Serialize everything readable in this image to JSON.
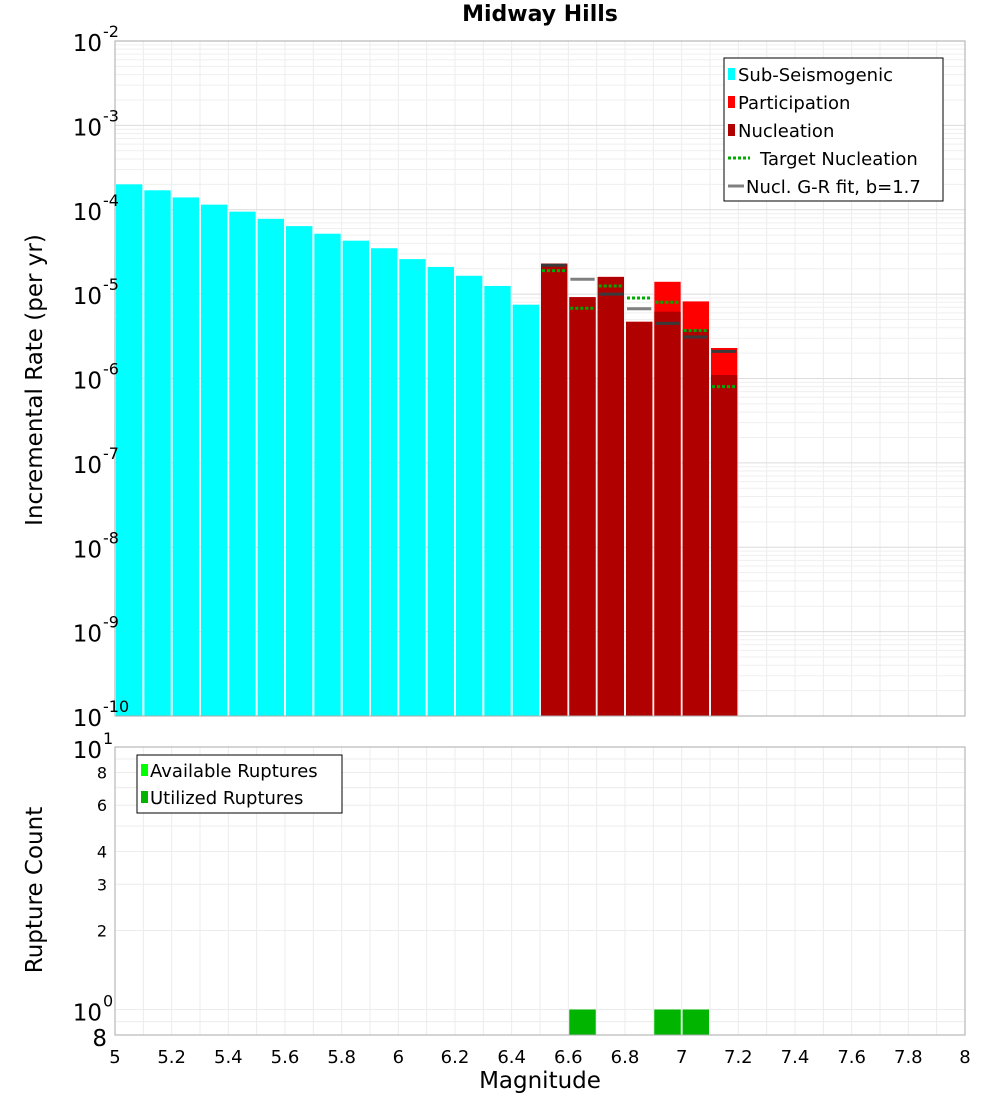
{
  "chart_data": [
    {
      "type": "bar",
      "title": "Midway Hills",
      "xlabel": "Magnitude",
      "ylabel": "Incremental Rate (per yr)",
      "yscale": "log",
      "xlim": [
        5,
        8
      ],
      "ylim": [
        1e-10,
        0.01
      ],
      "ytick_exponents": [
        -2,
        -3,
        -4,
        -5,
        -6,
        -7,
        -8,
        -9,
        -10
      ],
      "bin_width": 0.1,
      "series": [
        {
          "name": "Sub-Seismogenic",
          "color": "#00ffff",
          "x": [
            5.05,
            5.15,
            5.25,
            5.35,
            5.45,
            5.55,
            5.65,
            5.75,
            5.85,
            5.95,
            6.05,
            6.15,
            6.25,
            6.35,
            6.45
          ],
          "values": [
            0.0002,
            0.00017,
            0.00014,
            0.000115,
            9.5e-05,
            7.8e-05,
            6.4e-05,
            5.2e-05,
            4.3e-05,
            3.5e-05,
            2.6e-05,
            2.1e-05,
            1.65e-05,
            1.25e-05,
            7.5e-06
          ]
        },
        {
          "name": "Participation",
          "color": "#ff0000",
          "x": [
            6.55,
            6.65,
            6.75,
            6.85,
            6.95,
            7.05,
            7.15
          ],
          "values": [
            2.3e-05,
            9.2e-06,
            1.6e-05,
            4.7e-06,
            1.4e-05,
            8.2e-06,
            2.3e-06
          ]
        },
        {
          "name": "Nucleation",
          "color": "#b00000",
          "x": [
            6.55,
            6.65,
            6.75,
            6.85,
            6.95,
            7.05,
            7.15
          ],
          "values": [
            2.3e-05,
            9.2e-06,
            1.6e-05,
            4.7e-06,
            6.2e-06,
            3.8e-06,
            1.1e-06
          ]
        },
        {
          "name": "Target Nucleation",
          "color": "#00aa00",
          "style": "dotted",
          "x": [
            6.55,
            6.65,
            6.75,
            6.85,
            6.95,
            7.05,
            7.15
          ],
          "values": [
            1.9e-05,
            6.8e-06,
            1.25e-05,
            9e-06,
            8e-06,
            3.7e-06,
            8e-07
          ]
        },
        {
          "name": "Nucl. G-R fit, b=1.7",
          "color": "#808080",
          "x": [
            6.55,
            6.65,
            6.75,
            6.85,
            6.95,
            7.05,
            7.15
          ],
          "values": [
            2.2e-05,
            1.5e-05,
            1e-05,
            6.7e-06,
            4.5e-06,
            3.1e-06,
            2.1e-06
          ]
        }
      ],
      "legend": {
        "position": "top-right",
        "entries": [
          "Sub-Seismogenic",
          "Participation",
          "Nucleation",
          "Target Nucleation",
          "Nucl. G-R fit, b=1.7"
        ]
      }
    },
    {
      "type": "bar",
      "xlabel": "Magnitude",
      "ylabel": "Rupture Count",
      "yscale": "log",
      "xlim": [
        5,
        8
      ],
      "ylim": [
        0.8,
        10
      ],
      "ytick_labels": [
        {
          "value": 10,
          "base": "10",
          "exp": "1"
        },
        {
          "value": 8,
          "label": "8"
        },
        {
          "value": 6,
          "label": "6"
        },
        {
          "value": 4,
          "label": "4"
        },
        {
          "value": 3,
          "label": "3"
        },
        {
          "value": 2,
          "label": "2"
        },
        {
          "value": 1,
          "base": "10",
          "exp": "0"
        },
        {
          "value": 0.8,
          "label": "8"
        }
      ],
      "xticks": [
        "5",
        "5.2",
        "5.4",
        "5.6",
        "5.8",
        "6",
        "6.2",
        "6.4",
        "6.6",
        "6.8",
        "7",
        "7.2",
        "7.4",
        "7.6",
        "7.8",
        "8"
      ],
      "series": [
        {
          "name": "Available Ruptures",
          "color": "#00ff00",
          "x": [
            6.65,
            6.95,
            7.05
          ],
          "values": [
            1,
            1,
            1
          ]
        },
        {
          "name": "Utilized Ruptures",
          "color": "#00b400",
          "x": [
            6.65,
            6.95,
            7.05
          ],
          "values": [
            1,
            1,
            1
          ]
        }
      ],
      "legend": {
        "position": "top-left",
        "entries": [
          "Available Ruptures",
          "Utilized Ruptures"
        ]
      }
    }
  ]
}
